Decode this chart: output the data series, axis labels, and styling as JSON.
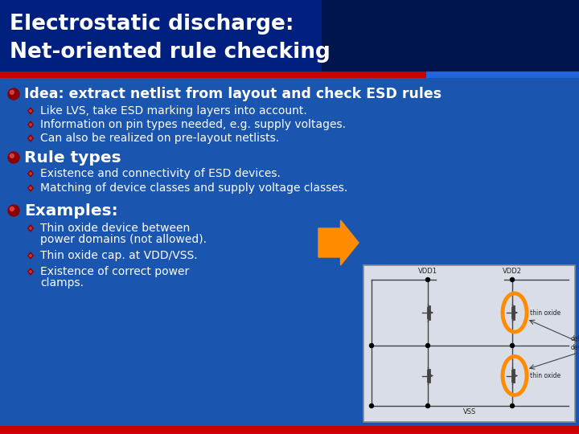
{
  "title_line1": "Electrostatic discharge:",
  "title_line2": "Net-oriented rule checking",
  "title_bg_dark": "#001f6e",
  "title_bg_right": "#001040",
  "title_text_color": "#FFFFFF",
  "body_bg_color": "#1a55b0",
  "red_bar_color": "#cc0000",
  "blue_bar_right_color": "#2266dd",
  "bullet1_text": "Idea: extract netlist from layout and check ESD rules",
  "sub_bullets1": [
    "Like LVS, take ESD marking layers into account.",
    "Information on pin types needed, e.g. supply voltages.",
    "Can also be realized on pre-layout netlists."
  ],
  "bullet2_text": "Rule types",
  "sub_bullets2": [
    "Existence and connectivity of ESD devices.",
    "Matching of device classes and supply voltage classes."
  ],
  "bullet3_text": "Examples:",
  "sub_bullets3_line1": "Thin oxide device between",
  "sub_bullets3_line2": "power domains (not allowed).",
  "sub_bullets3_b": "Thin oxide cap. at VDD/VSS.",
  "sub_bullets3_c1": "Existence of correct power",
  "sub_bullets3_c2": "clamps.",
  "diagram_bg": "#d8dde8",
  "diagram_orange": "#FF8C00",
  "diagram_line_color": "#444444",
  "diagram_text_color": "#222222"
}
